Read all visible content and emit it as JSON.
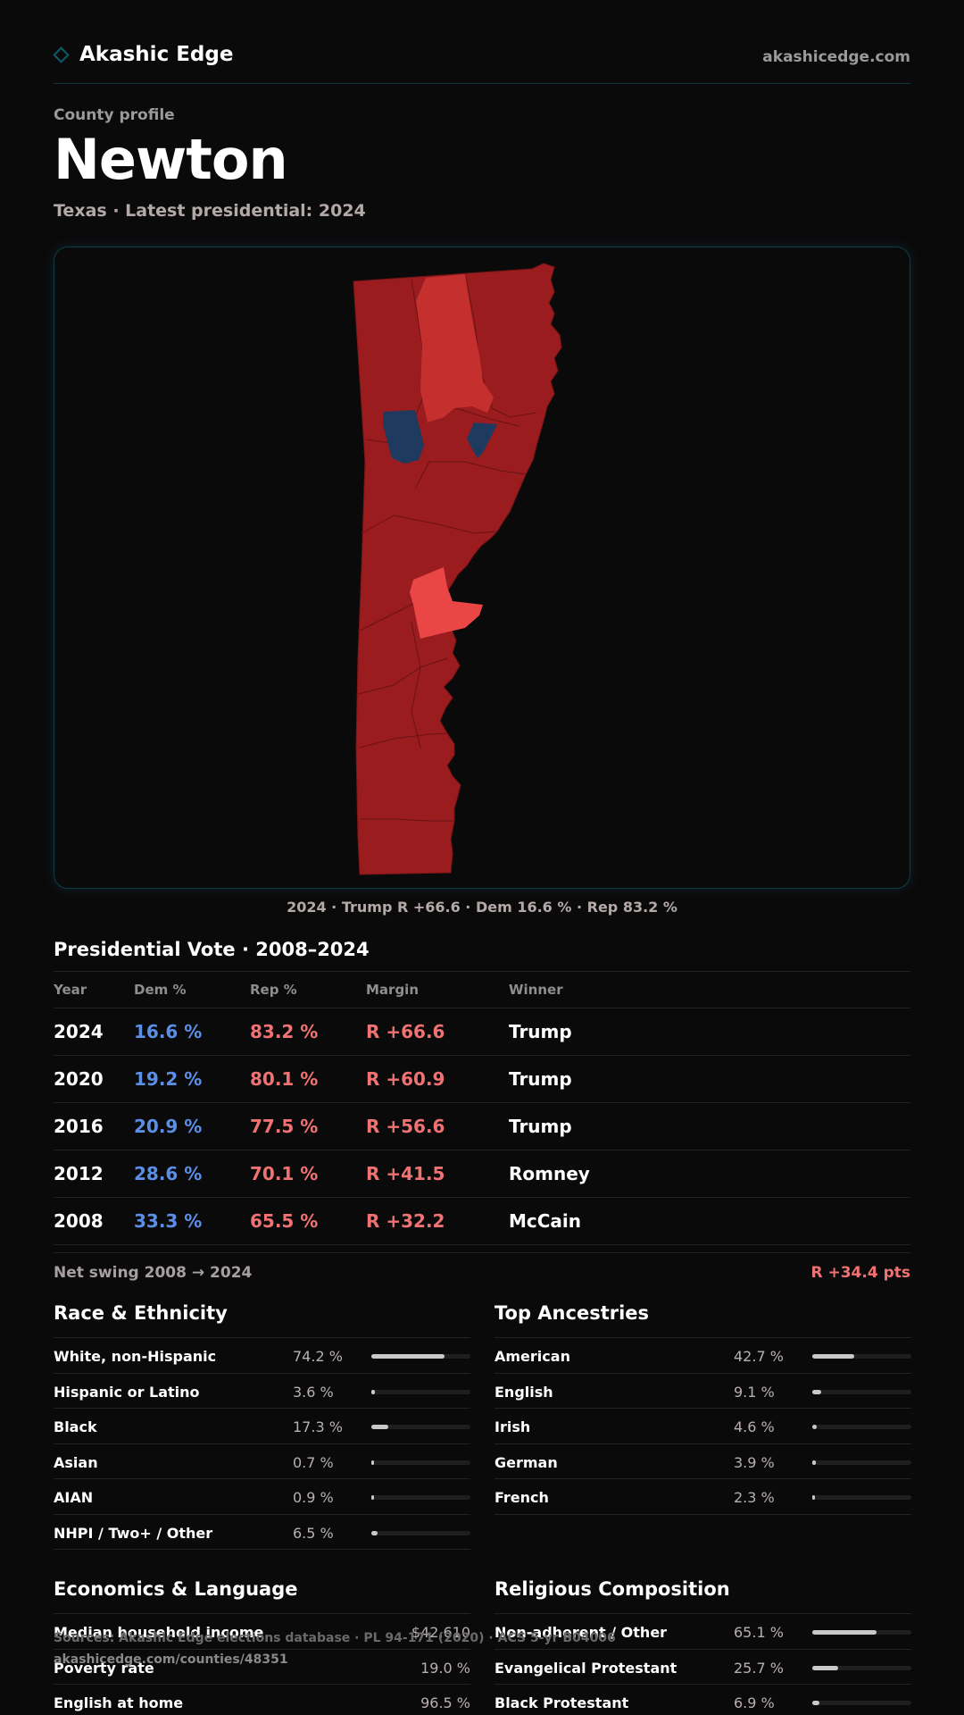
{
  "header": {
    "brand": "Akashic Edge",
    "site": "akashicedge.com"
  },
  "profile": {
    "kicker": "County profile",
    "county": "Newton",
    "subtitle": "Texas · Latest presidential: 2024"
  },
  "map": {
    "caption": "2024 · Trump R +66.6 · Dem 16.6 % · Rep 83.2 %",
    "colors": {
      "dark_red": "#9a1c1e",
      "mid_red": "#c5302f",
      "light_red": "#ea4646",
      "blue": "#1f3a5f"
    }
  },
  "vote": {
    "title": "Presidential Vote · 2008–2024",
    "headers": {
      "year": "Year",
      "dem": "Dem %",
      "rep": "Rep %",
      "margin": "Margin",
      "winner": "Winner"
    },
    "rows": [
      {
        "year": "2024",
        "dem": "16.6 %",
        "rep": "83.2 %",
        "margin": "R +66.6",
        "winner": "Trump"
      },
      {
        "year": "2020",
        "dem": "19.2 %",
        "rep": "80.1 %",
        "margin": "R +60.9",
        "winner": "Trump"
      },
      {
        "year": "2016",
        "dem": "20.9 %",
        "rep": "77.5 %",
        "margin": "R +56.6",
        "winner": "Trump"
      },
      {
        "year": "2012",
        "dem": "28.6 %",
        "rep": "70.1 %",
        "margin": "R +41.5",
        "winner": "Romney"
      },
      {
        "year": "2008",
        "dem": "33.3 %",
        "rep": "65.5 %",
        "margin": "R +32.2",
        "winner": "McCain"
      }
    ],
    "swing_label": "Net swing 2008 → 2024",
    "swing_value": "R +34.4 pts"
  },
  "race": {
    "title": "Race & Ethnicity",
    "rows": [
      {
        "label": "White, non-Hispanic",
        "value": "74.2 %",
        "pct": 74.2
      },
      {
        "label": "Hispanic or Latino",
        "value": "3.6 %",
        "pct": 3.6
      },
      {
        "label": "Black",
        "value": "17.3 %",
        "pct": 17.3
      },
      {
        "label": "Asian",
        "value": "0.7 %",
        "pct": 0.7
      },
      {
        "label": "AIAN",
        "value": "0.9 %",
        "pct": 0.9
      },
      {
        "label": "NHPI / Two+ / Other",
        "value": "6.5 %",
        "pct": 6.5
      }
    ]
  },
  "ancestry": {
    "title": "Top Ancestries",
    "rows": [
      {
        "label": "American",
        "value": "42.7 %",
        "pct": 42.7
      },
      {
        "label": "English",
        "value": "9.1 %",
        "pct": 9.1
      },
      {
        "label": "Irish",
        "value": "4.6 %",
        "pct": 4.6
      },
      {
        "label": "German",
        "value": "3.9 %",
        "pct": 3.9
      },
      {
        "label": "French",
        "value": "2.3 %",
        "pct": 2.3
      }
    ]
  },
  "economics": {
    "title": "Economics & Language",
    "rows": [
      {
        "label": "Median household income",
        "value": "$42,610"
      },
      {
        "label": "Poverty rate",
        "value": "19.0 %"
      },
      {
        "label": "English at home",
        "value": "96.5 %"
      }
    ]
  },
  "religion": {
    "title": "Religious Composition",
    "rows": [
      {
        "label": "Non-adherent / Other",
        "value": "65.1 %",
        "pct": 65.1
      },
      {
        "label": "Evangelical Protestant",
        "value": "25.7 %",
        "pct": 25.7
      },
      {
        "label": "Black Protestant",
        "value": "6.9 %",
        "pct": 6.9
      }
    ]
  },
  "footer": {
    "sources": "Sources: Akashic Edge elections database · PL 94-171 (2020) · ACS 5-yr B04006",
    "url": "akashicedge.com/counties/48351"
  }
}
